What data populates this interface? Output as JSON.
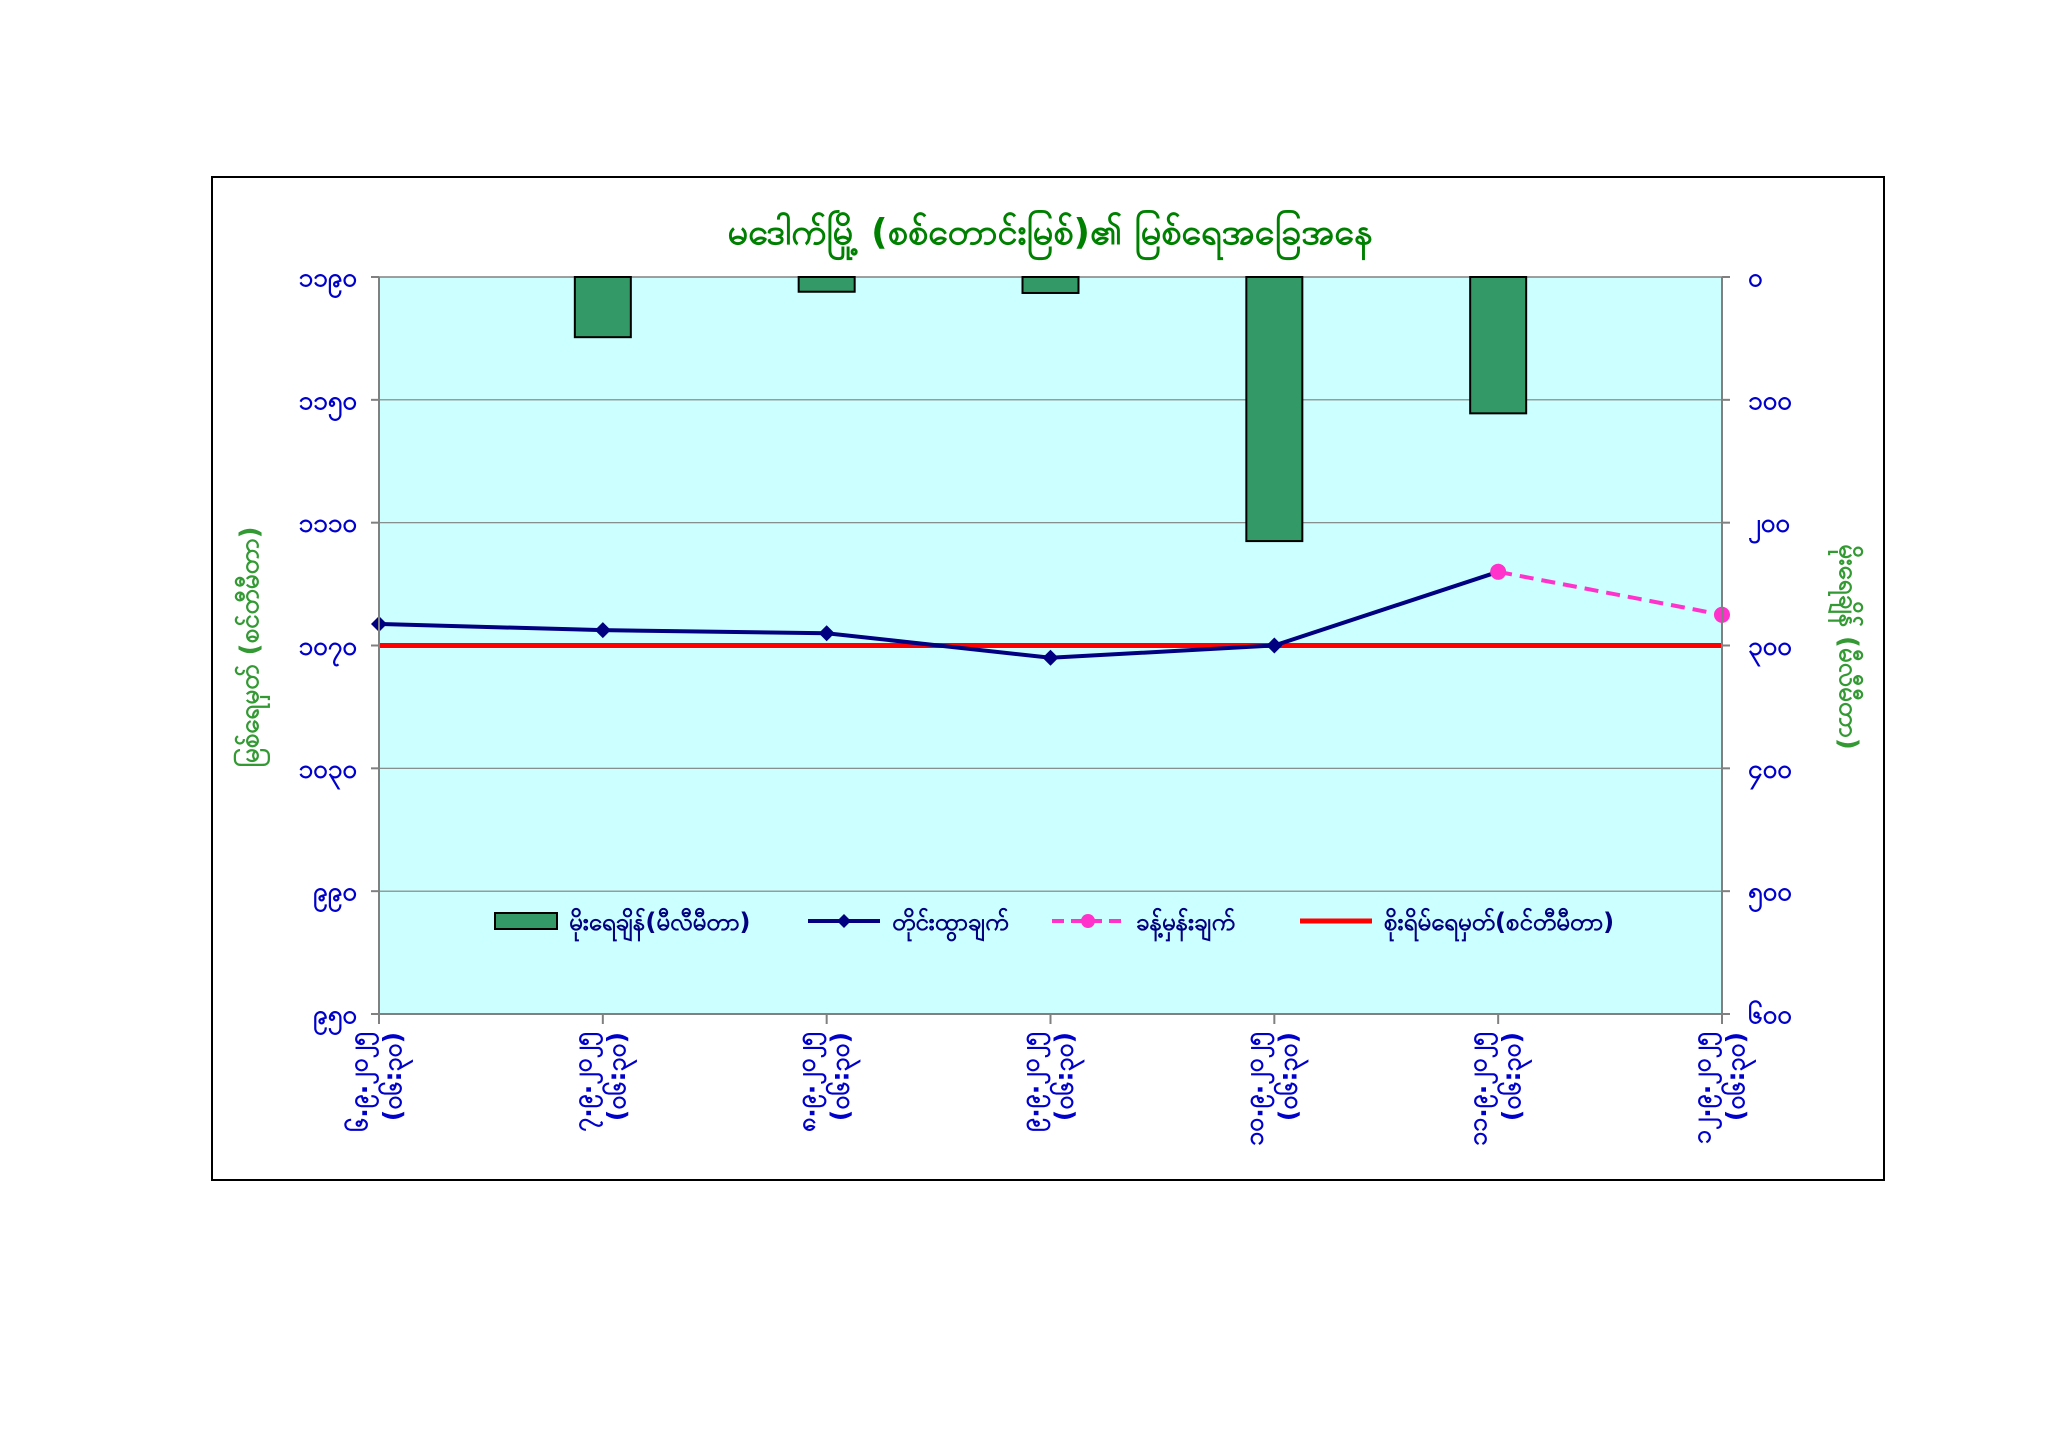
{
  "chart_data": {
    "type": "bar+line",
    "title": "မဒေါက်မြို့ (စစ်တောင်းမြစ်)၏ မြစ်ရေအခြေအနေ",
    "left_axis": {
      "label": "မြစ်ရေမှတ် (စင်တီမီတာ)",
      "ticks": [
        "၁၁၉၀",
        "၁၁၅၀",
        "၁၁၁၀",
        "၁၀၇၀",
        "၁၀၃၀",
        "၉၉၀",
        "၉၅၀"
      ],
      "min": 950,
      "max": 1190,
      "step": 40
    },
    "right_axis": {
      "label": "မိုးရေချိန် (မီလီမီတာ)",
      "ticks": [
        "၀",
        "၁၀၀",
        "၂၀၀",
        "၃၀၀",
        "၄၀၀",
        "၅၀၀",
        "၆၀၀"
      ],
      "min": 0,
      "max": 600,
      "step": 100,
      "inverted": true
    },
    "categories": [
      "၆.၉.၂၀၂၅ (၀၆:၃၀)",
      "၇.၉.၂၀၂၅ (၀၆:၃၀)",
      "၈.၉.၂၀၂၅ (၀၆:၃၀)",
      "၉.၉.၂၀၂၅ (၀၆:၃၀)",
      "၁၀.၉.၂၀၂၅ (၀၆:၃၀)",
      "၁၁.၉.၂၀၂၅ (၀၆:၃၀)",
      "၁၂.၉.၂၀၂၅ (၀၆:၃၀)"
    ],
    "series": [
      {
        "name": "မိုးရေချိန်(မီလီမီတာ)",
        "kind": "bar",
        "axis": "right",
        "values": [
          null,
          49,
          12,
          13,
          215,
          111,
          null
        ],
        "color": "#339966"
      },
      {
        "name": "တိုင်းထွာချက်",
        "kind": "line",
        "axis": "left",
        "values": [
          1077,
          1075,
          1074,
          1066,
          1070,
          1094,
          null
        ],
        "color": "#000080"
      },
      {
        "name": "ခန့်မှန်းချက်",
        "kind": "line-dashed",
        "axis": "left",
        "values": [
          null,
          null,
          null,
          null,
          null,
          1094,
          1080
        ],
        "color": "#ff33cc"
      },
      {
        "name": "စိုးရိမ်ရေမှတ်(စင်တီမီတာ)",
        "kind": "reference",
        "axis": "left",
        "value": 1070,
        "color": "#ff0000"
      }
    ],
    "grid": true,
    "legend_position": "bottom-inside",
    "colors": {
      "plot_bg": "#ccffff",
      "title": "#008000",
      "axis_text": "#0000cc",
      "axis_label": "#339933"
    }
  }
}
